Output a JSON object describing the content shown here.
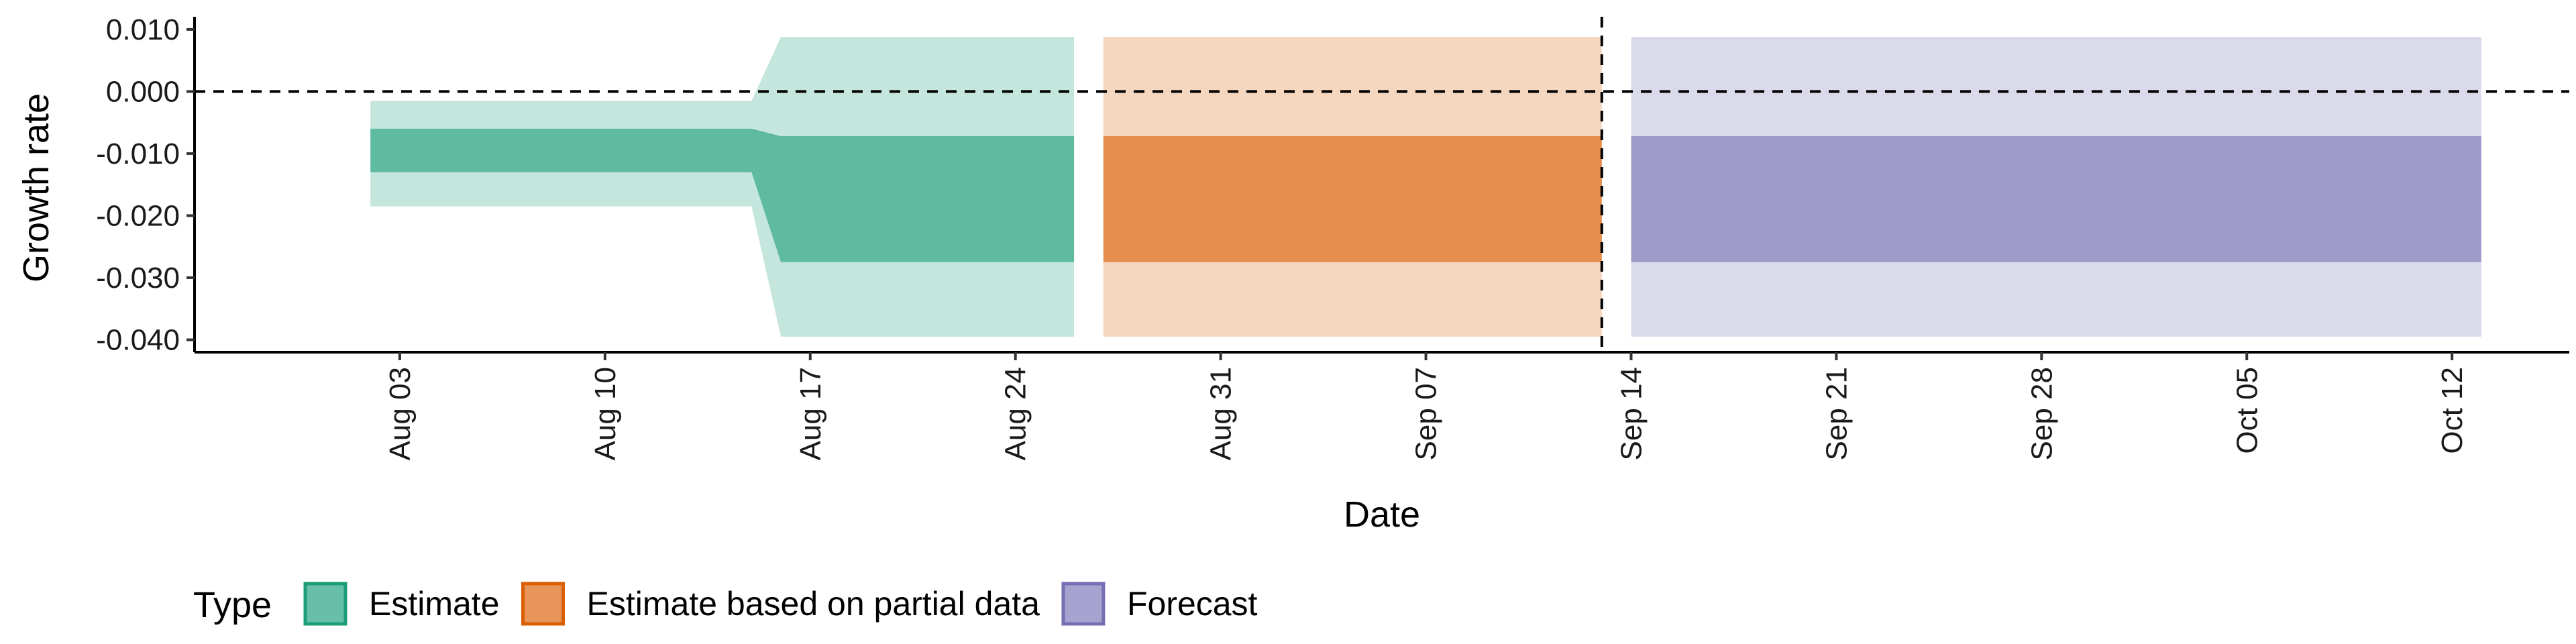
{
  "chart_data": {
    "type": "area",
    "xlabel": "Date",
    "ylabel": "Growth rate",
    "ylim": [
      -0.042,
      0.0115
    ],
    "xlim": [
      "2023-07-27",
      "2023-10-16"
    ],
    "y_ticks": [
      0.01,
      0.0,
      -0.01,
      -0.02,
      -0.03,
      -0.04
    ],
    "y_tick_labels": [
      "0.010",
      "0.000",
      "-0.010",
      "-0.020",
      "-0.030",
      "-0.040"
    ],
    "x_ticks": [
      "2023-08-03",
      "2023-08-10",
      "2023-08-17",
      "2023-08-24",
      "2023-08-31",
      "2023-09-07",
      "2023-09-14",
      "2023-09-21",
      "2023-09-28",
      "2023-10-05",
      "2023-10-12"
    ],
    "x_tick_labels": [
      "Aug 03",
      "Aug 10",
      "Aug 17",
      "Aug 24",
      "Aug 31",
      "Sep 07",
      "Sep 14",
      "Sep 21",
      "Sep 28",
      "Oct 05",
      "Oct 12"
    ],
    "hline": {
      "y": 0.0,
      "style": "dashed"
    },
    "vline": {
      "x": "2023-09-13",
      "style": "dashed"
    },
    "grid": false,
    "legend": {
      "title": "Type",
      "position": "bottom-left",
      "entries": [
        {
          "label": "Estimate",
          "color": "#66BFA6",
          "border": "#1B9E77"
        },
        {
          "label": "Estimate based on partial data",
          "color": "#E8955A",
          "border": "#D95F02"
        },
        {
          "label": "Forecast",
          "color": "#A7A2CF",
          "border": "#7570B3"
        }
      ]
    },
    "series": [
      {
        "name": "Estimate",
        "color": "#1B9E77",
        "x": [
          "2023-08-02",
          "2023-08-15",
          "2023-08-16",
          "2023-08-26"
        ],
        "inner_lower": [
          -0.013,
          -0.013,
          -0.0275,
          -0.0275
        ],
        "inner_upper": [
          -0.006,
          -0.006,
          -0.0072,
          -0.0072
        ],
        "outer_lower": [
          -0.0185,
          -0.0185,
          -0.0395,
          -0.0395
        ],
        "outer_upper": [
          -0.0015,
          -0.0015,
          0.0088,
          0.0088
        ]
      },
      {
        "name": "Estimate based on partial data",
        "color": "#D95F02",
        "x": [
          "2023-08-27",
          "2023-09-13"
        ],
        "inner_lower": [
          -0.0275,
          -0.0275
        ],
        "inner_upper": [
          -0.0072,
          -0.0072
        ],
        "outer_lower": [
          -0.0395,
          -0.0395
        ],
        "outer_upper": [
          0.0088,
          0.0088
        ]
      },
      {
        "name": "Forecast",
        "color": "#7570B3",
        "x": [
          "2023-09-14",
          "2023-10-13"
        ],
        "inner_lower": [
          -0.0275,
          -0.0275
        ],
        "inner_upper": [
          -0.0072,
          -0.0072
        ],
        "outer_lower": [
          -0.0395,
          -0.0395
        ],
        "outer_upper": [
          0.0088,
          0.0088
        ]
      }
    ]
  }
}
